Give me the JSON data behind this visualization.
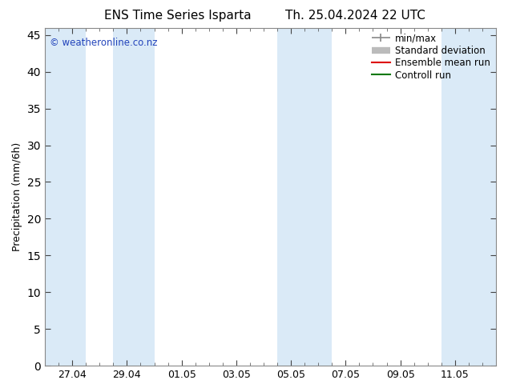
{
  "title_left": "ENS Time Series Isparta",
  "title_right": "Th. 25.04.2024 22 UTC",
  "ylabel": "Precipitation (mm/6h)",
  "ylim": [
    0,
    46
  ],
  "yticks": [
    0,
    5,
    10,
    15,
    20,
    25,
    30,
    35,
    40,
    45
  ],
  "background_color": "#ffffff",
  "plot_bg_color": "#ffffff",
  "band_color": "#daeaf7",
  "watermark": "© weatheronline.co.nz",
  "watermark_color": "#2244bb",
  "legend_entries": [
    "min/max",
    "Standard deviation",
    "Ensemble mean run",
    "Controll run"
  ],
  "legend_line_colors": [
    "#888888",
    "#bbbbbb",
    "#dd0000",
    "#007700"
  ],
  "date_labels": [
    "27.04",
    "29.04",
    "01.05",
    "03.05",
    "05.05",
    "07.05",
    "09.05",
    "11.05"
  ],
  "shaded_bands": [
    [
      0.0,
      1.5
    ],
    [
      2.5,
      4.0
    ],
    [
      8.5,
      10.5
    ],
    [
      14.5,
      16.5
    ]
  ],
  "xlim": [
    0,
    16.5
  ],
  "spine_color": "#888888",
  "tick_color": "#444444",
  "font_color": "#000000",
  "fontsize_title": 11,
  "fontsize_axis": 9,
  "fontsize_ticks": 9,
  "fontsize_legend": 8.5,
  "fontsize_watermark": 8.5
}
